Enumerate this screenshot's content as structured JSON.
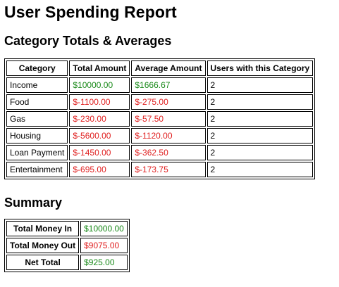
{
  "report": {
    "title": "User Spending Report"
  },
  "category_section": {
    "heading": "Category Totals & Averages",
    "columns": [
      "Category",
      "Total Amount",
      "Average Amount",
      "Users with this Category"
    ],
    "rows": [
      {
        "category": "Income",
        "total": "$10000.00",
        "average": "$1666.67",
        "users": "2",
        "sign": "pos"
      },
      {
        "category": "Food",
        "total": "$-1100.00",
        "average": "$-275.00",
        "users": "2",
        "sign": "neg"
      },
      {
        "category": "Gas",
        "total": "$-230.00",
        "average": "$-57.50",
        "users": "2",
        "sign": "neg"
      },
      {
        "category": "Housing",
        "total": "$-5600.00",
        "average": "$-1120.00",
        "users": "2",
        "sign": "neg"
      },
      {
        "category": "Loan Payment",
        "total": "$-1450.00",
        "average": "$-362.50",
        "users": "2",
        "sign": "neg"
      },
      {
        "category": "Entertainment",
        "total": "$-695.00",
        "average": "$-173.75",
        "users": "2",
        "sign": "neg"
      }
    ]
  },
  "summary_section": {
    "heading": "Summary",
    "rows": [
      {
        "label": "Total Money In",
        "value": "$10000.00",
        "sign": "pos"
      },
      {
        "label": "Total Money Out",
        "value": "$9075.00",
        "sign": "neg"
      },
      {
        "label": "Net Total",
        "value": "$925.00",
        "sign": "pos"
      }
    ]
  },
  "colors": {
    "positive": "#1a8a1a",
    "negative": "#e02020"
  }
}
